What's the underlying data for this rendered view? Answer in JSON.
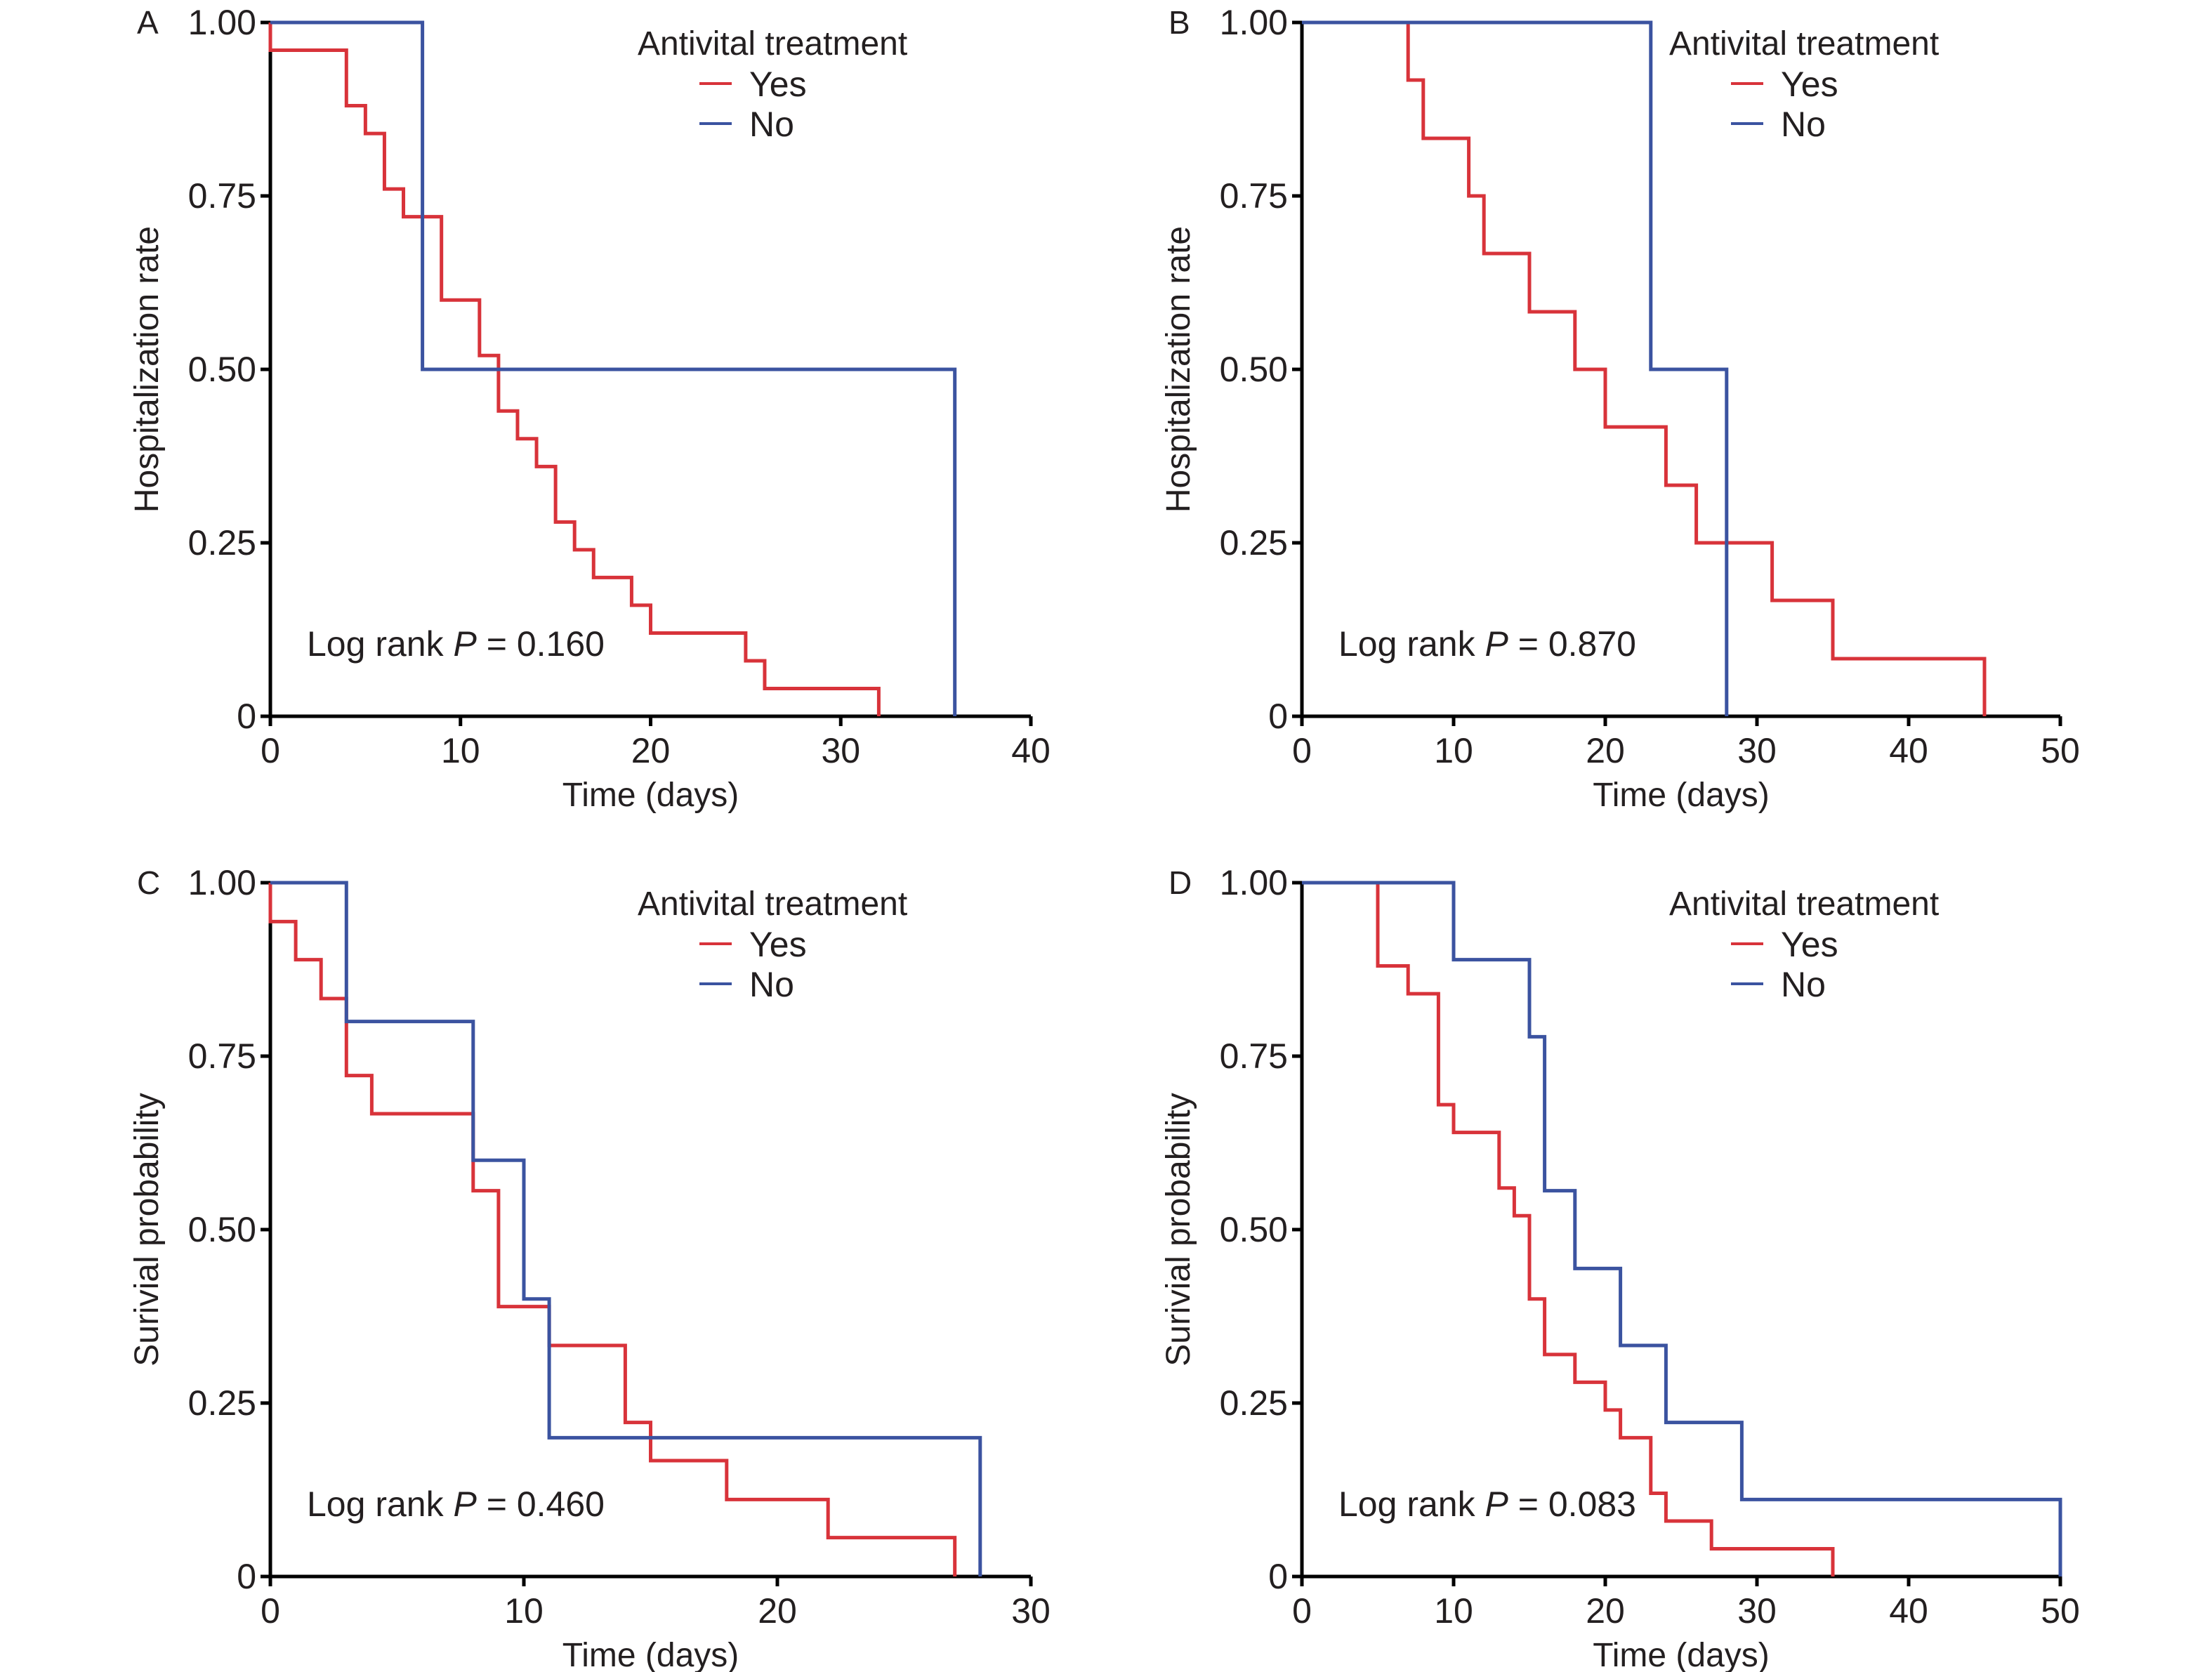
{
  "colors": {
    "yes": "#d8333a",
    "no": "#3b53a0",
    "axis": "#000000",
    "text": "#231f20"
  },
  "chart_data": [
    {
      "type": "line",
      "subtype": "kaplan-meier-step",
      "panel": "A",
      "title": "",
      "xlabel": "Time (days)",
      "ylabel": "Hospitalization rate",
      "xlim": [
        0,
        40
      ],
      "ylim": [
        0,
        1
      ],
      "xticks": [
        0,
        10,
        20,
        30,
        40
      ],
      "xtick_labels": [
        "0",
        "10",
        "20",
        "30",
        "40"
      ],
      "yticks": [
        0,
        0.25,
        0.5,
        0.75,
        1.0
      ],
      "ytick_labels": [
        "0",
        "0.25",
        "0.50",
        "0.75",
        "1.00"
      ],
      "grid": false,
      "legend": {
        "title": "Antivital treatment",
        "placement": "top-right",
        "entries": [
          "Yes",
          "No"
        ]
      },
      "annotation": {
        "prefix": "Log rank ",
        "italic": "P",
        "suffix": " = 0.160"
      },
      "series": [
        {
          "name": "Yes",
          "color_key": "yes",
          "x": [
            0,
            0,
            4,
            5,
            6,
            7,
            9,
            11,
            12,
            13,
            14,
            15,
            16,
            17,
            19,
            20,
            25,
            26,
            32
          ],
          "y": [
            1.0,
            0.96,
            0.88,
            0.84,
            0.76,
            0.72,
            0.6,
            0.52,
            0.44,
            0.4,
            0.36,
            0.28,
            0.24,
            0.2,
            0.16,
            0.12,
            0.08,
            0.04,
            0.0
          ]
        },
        {
          "name": "No",
          "color_key": "no",
          "x": [
            0,
            8,
            36
          ],
          "y": [
            1.0,
            0.5,
            0.0
          ]
        }
      ]
    },
    {
      "type": "line",
      "subtype": "kaplan-meier-step",
      "panel": "B",
      "title": "",
      "xlabel": "Time (days)",
      "ylabel": "Hospitalization rate",
      "xlim": [
        0,
        50
      ],
      "ylim": [
        0,
        1
      ],
      "xticks": [
        0,
        10,
        20,
        30,
        40,
        50
      ],
      "xtick_labels": [
        "0",
        "10",
        "20",
        "30",
        "40",
        "50"
      ],
      "yticks": [
        0,
        0.25,
        0.5,
        0.75,
        1.0
      ],
      "ytick_labels": [
        "0",
        "0.25",
        "0.50",
        "0.75",
        "1.00"
      ],
      "grid": false,
      "legend": {
        "title": "Antivital treatment",
        "placement": "top-right",
        "entries": [
          "Yes",
          "No"
        ]
      },
      "annotation": {
        "prefix": "Log rank ",
        "italic": "P",
        "suffix": " = 0.870"
      },
      "series": [
        {
          "name": "Yes",
          "color_key": "yes",
          "x": [
            0,
            7,
            8,
            11,
            12,
            15,
            18,
            20,
            24,
            26,
            31,
            35,
            45
          ],
          "y": [
            1.0,
            0.917,
            0.833,
            0.75,
            0.667,
            0.583,
            0.5,
            0.417,
            0.333,
            0.25,
            0.167,
            0.083,
            0.0
          ]
        },
        {
          "name": "No",
          "color_key": "no",
          "x": [
            0,
            23,
            28
          ],
          "y": [
            1.0,
            0.5,
            0.0
          ]
        }
      ]
    },
    {
      "type": "line",
      "subtype": "kaplan-meier-step",
      "panel": "C",
      "title": "",
      "xlabel": "Time (days)",
      "ylabel": "Surivial probability",
      "xlim": [
        0,
        30
      ],
      "ylim": [
        0,
        1
      ],
      "xticks": [
        0,
        10,
        20,
        30
      ],
      "xtick_labels": [
        "0",
        "10",
        "20",
        "30"
      ],
      "yticks": [
        0,
        0.25,
        0.5,
        0.75,
        1.0
      ],
      "ytick_labels": [
        "0",
        "0.25",
        "0.50",
        "0.75",
        "1.00"
      ],
      "grid": false,
      "legend": {
        "title": "Antivital treatment",
        "placement": "top-right",
        "entries": [
          "Yes",
          "No"
        ]
      },
      "annotation": {
        "prefix": "Log rank ",
        "italic": "P",
        "suffix": " = 0.460"
      },
      "series": [
        {
          "name": "Yes",
          "color_key": "yes",
          "x": [
            0,
            0,
            1,
            2,
            3,
            4,
            8,
            9,
            11,
            14,
            15,
            18,
            22,
            27
          ],
          "y": [
            1.0,
            0.944,
            0.889,
            0.833,
            0.722,
            0.667,
            0.556,
            0.389,
            0.333,
            0.222,
            0.167,
            0.111,
            0.056,
            0.0
          ]
        },
        {
          "name": "No",
          "color_key": "no",
          "x": [
            0,
            3,
            8,
            10,
            11,
            28
          ],
          "y": [
            1.0,
            0.8,
            0.6,
            0.4,
            0.2,
            0.0
          ]
        }
      ]
    },
    {
      "type": "line",
      "subtype": "kaplan-meier-step",
      "panel": "D",
      "title": "",
      "xlabel": "Time (days)",
      "ylabel": "Surivial probability",
      "xlim": [
        0,
        50
      ],
      "ylim": [
        0,
        1
      ],
      "xticks": [
        0,
        10,
        20,
        30,
        40,
        50
      ],
      "xtick_labels": [
        "0",
        "10",
        "20",
        "30",
        "40",
        "50"
      ],
      "yticks": [
        0,
        0.25,
        0.5,
        0.75,
        1.0
      ],
      "ytick_labels": [
        "0",
        "0.25",
        "0.50",
        "0.75",
        "1.00"
      ],
      "grid": false,
      "legend": {
        "title": "Antivital treatment",
        "placement": "top-right",
        "entries": [
          "Yes",
          "No"
        ]
      },
      "annotation": {
        "prefix": "Log rank ",
        "italic": "P",
        "suffix": " = 0.083"
      },
      "series": [
        {
          "name": "Yes",
          "color_key": "yes",
          "x": [
            0,
            5,
            7,
            9,
            10,
            13,
            14,
            15,
            16,
            18,
            20,
            21,
            23,
            24,
            27,
            35
          ],
          "y": [
            1.0,
            0.88,
            0.84,
            0.68,
            0.64,
            0.56,
            0.52,
            0.4,
            0.32,
            0.28,
            0.24,
            0.2,
            0.12,
            0.08,
            0.04,
            0.0
          ]
        },
        {
          "name": "No",
          "color_key": "no",
          "x": [
            0,
            10,
            15,
            16,
            18,
            21,
            24,
            29,
            50
          ],
          "y": [
            1.0,
            0.889,
            0.778,
            0.556,
            0.444,
            0.333,
            0.222,
            0.111,
            0.0
          ]
        }
      ]
    }
  ]
}
